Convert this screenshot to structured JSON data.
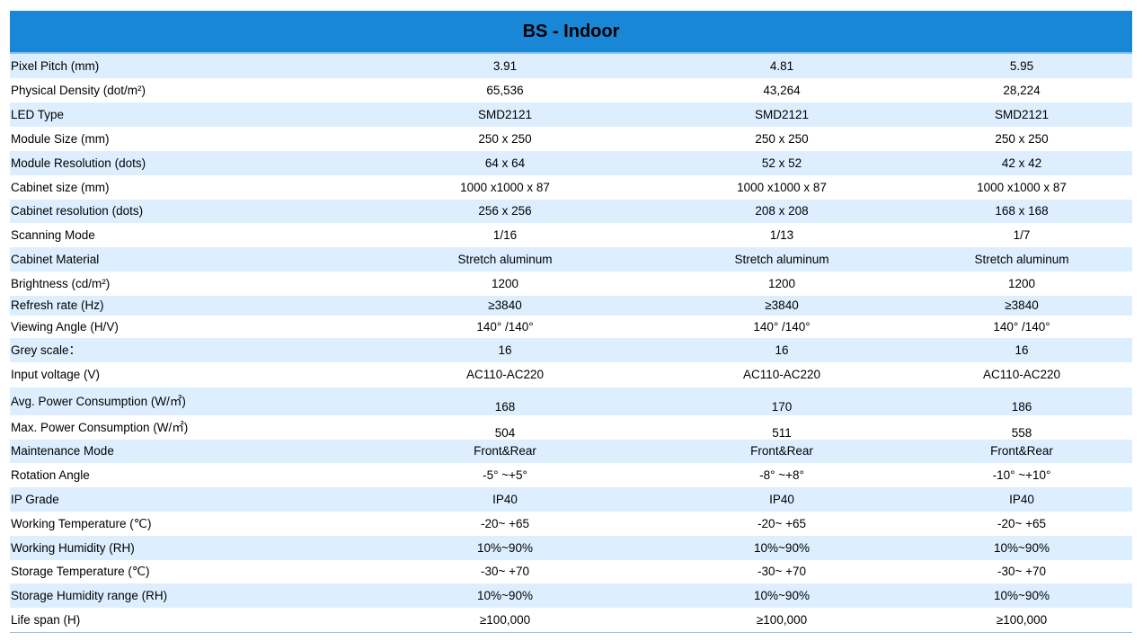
{
  "table": {
    "title": "BS - Indoor",
    "rows": [
      {
        "label": "Pixel Pitch (mm)",
        "values": [
          "3.91",
          "4.81",
          "5.95"
        ]
      },
      {
        "label": "Physical Density (dot/m²)",
        "values": [
          "65,536",
          "43,264",
          "28,224"
        ]
      },
      {
        "label": "LED Type",
        "values": [
          "SMD2121",
          "SMD2121",
          "SMD2121"
        ]
      },
      {
        "label": "Module Size (mm)",
        "values": [
          "250 x 250",
          "250 x 250",
          "250 x 250"
        ]
      },
      {
        "label": "Module Resolution (dots)",
        "values": [
          "64 x 64",
          "52 x 52",
          "42 x 42"
        ]
      },
      {
        "label": "Cabinet size (mm)",
        "values": [
          "1000 x1000 x 87",
          "1000 x1000 x 87",
          "1000 x1000 x 87"
        ]
      },
      {
        "label": "Cabinet resolution (dots)",
        "values": [
          "256 x 256",
          "208 x 208",
          "168 x 168"
        ]
      },
      {
        "label": "Scanning Mode",
        "values": [
          "1/16",
          "1/13",
          "1/7"
        ]
      },
      {
        "label": "Cabinet Material",
        "values": [
          "Stretch aluminum",
          "Stretch aluminum",
          "Stretch aluminum"
        ]
      },
      {
        "label": "Brightness (cd/m²)",
        "values": [
          "1200",
          "1200",
          "1200"
        ]
      },
      {
        "label": "Refresh  rate (Hz)",
        "values": [
          "≥3840",
          "≥3840",
          "≥3840"
        ]
      },
      {
        "label": "Viewing Angle (H/V)",
        "values": [
          "140°  /140°",
          "140°  /140°",
          "140°  /140°"
        ]
      },
      {
        "label": "Grey  scale：",
        "values": [
          "16",
          "16",
          "16"
        ]
      },
      {
        "label": "Input voltage (V)",
        "values": [
          "AC110-AC220",
          "AC110-AC220",
          "AC110-AC220"
        ]
      },
      {
        "label": "Avg. Power Consumption (W/㎡)",
        "values": [
          "168",
          "170",
          "186"
        ]
      },
      {
        "label": "Max. Power Consumption (W/㎡)",
        "values": [
          "504",
          "511",
          "558"
        ]
      },
      {
        "label": "Maintenance  Mode",
        "values": [
          "Front&Rear",
          "Front&Rear",
          "Front&Rear"
        ]
      },
      {
        "label": "Rotation Angle",
        "values": [
          "-5°  ~+5°",
          "-8°  ~+8°",
          "-10°  ~+10°"
        ]
      },
      {
        "label": "IP Grade",
        "values": [
          "IP40",
          "IP40",
          "IP40"
        ]
      },
      {
        "label": "Working Temperature (℃)",
        "values": [
          "-20~ +65",
          "-20~ +65",
          "-20~ +65"
        ]
      },
      {
        "label": "Working  Humidity (RH)",
        "values": [
          "10%~90%",
          "10%~90%",
          "10%~90%"
        ]
      },
      {
        "label": "Storage  Temperature (℃)",
        "values": [
          "-30~ +70",
          "-30~ +70",
          "-30~ +70"
        ]
      },
      {
        "label": "Storage Humidity range (RH)",
        "values": [
          "10%~90%",
          "10%~90%",
          "10%~90%"
        ]
      },
      {
        "label": "Life span (H)",
        "values": [
          "≥100,000",
          "≥100,000",
          "≥100,000"
        ]
      }
    ]
  },
  "colors": {
    "header_bg": "#1a86d6",
    "row_shaded": "#ddefff",
    "row_light": "#ffffff",
    "rule": "#8fc3ea"
  }
}
